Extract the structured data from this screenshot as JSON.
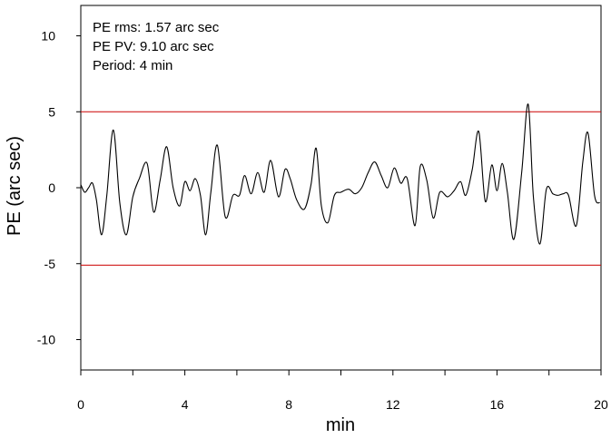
{
  "chart_data": {
    "type": "line",
    "title": "",
    "xlabel": "min",
    "ylabel": "PE (arc sec)",
    "xlim": [
      0,
      20
    ],
    "ylim": [
      -12,
      12
    ],
    "x_ticks": [
      {
        "value": 0,
        "label": "0"
      },
      {
        "value": 4,
        "label": "4"
      },
      {
        "value": 8,
        "label": "8"
      },
      {
        "value": 12,
        "label": "12"
      },
      {
        "value": 16,
        "label": "16"
      },
      {
        "value": 20,
        "label": "20"
      }
    ],
    "x_minor_ticks": [
      2,
      6,
      10,
      14,
      18
    ],
    "y_ticks": [
      {
        "value": 10,
        "label": "10"
      },
      {
        "value": 5,
        "label": "5"
      },
      {
        "value": 0,
        "label": "0"
      },
      {
        "value": -5,
        "label": "-5"
      },
      {
        "value": -10,
        "label": "-10"
      }
    ],
    "grid": false,
    "annotations": [
      "PE rms: 1.57 arc sec",
      "PE PV: 9.10 arc sec",
      "Period: 4 min"
    ],
    "reference_lines": [
      {
        "y": 5,
        "color": "#cc0000"
      },
      {
        "y": -5.1,
        "color": "#cc0000"
      }
    ],
    "series": [
      {
        "color": "#000000",
        "x": [
          0,
          0.15,
          0.3,
          0.45,
          0.6,
          0.8,
          1.0,
          1.25,
          1.5,
          1.75,
          2.0,
          2.25,
          2.55,
          2.8,
          3.05,
          3.3,
          3.55,
          3.8,
          4.0,
          4.2,
          4.4,
          4.6,
          4.8,
          5.0,
          5.25,
          5.55,
          5.85,
          6.1,
          6.3,
          6.55,
          6.8,
          7.05,
          7.3,
          7.6,
          7.85,
          8.05,
          8.3,
          8.6,
          8.85,
          9.05,
          9.25,
          9.5,
          9.75,
          10.0,
          10.3,
          10.55,
          10.8,
          11.05,
          11.3,
          11.55,
          11.8,
          12.05,
          12.3,
          12.55,
          12.85,
          13.05,
          13.3,
          13.55,
          13.8,
          14.1,
          14.35,
          14.6,
          14.8,
          15.05,
          15.3,
          15.55,
          15.8,
          16.0,
          16.2,
          16.4,
          16.65,
          16.95,
          17.2,
          17.4,
          17.65,
          17.9,
          18.15,
          18.35,
          18.55,
          18.75,
          19.05,
          19.3,
          19.5,
          19.75,
          19.95
        ],
        "values": [
          0.2,
          -0.3,
          0.0,
          0.3,
          -0.8,
          -3.1,
          -0.5,
          3.8,
          -1.0,
          -3.1,
          -0.6,
          0.6,
          1.6,
          -1.6,
          0.5,
          2.7,
          0.0,
          -1.2,
          0.4,
          -0.2,
          0.6,
          -0.5,
          -3.1,
          -0.3,
          2.8,
          -1.9,
          -0.5,
          -0.5,
          0.8,
          -0.4,
          1.0,
          -0.3,
          1.8,
          -0.6,
          1.2,
          0.6,
          -0.8,
          -1.4,
          0.2,
          2.6,
          -1.2,
          -2.3,
          -0.5,
          -0.3,
          -0.1,
          -0.4,
          0.0,
          1.0,
          1.7,
          0.8,
          0.0,
          1.3,
          0.3,
          0.6,
          -2.5,
          1.4,
          0.5,
          -2.0,
          -0.3,
          -0.6,
          -0.2,
          0.4,
          -0.5,
          1.2,
          3.7,
          -0.9,
          1.5,
          -0.2,
          1.6,
          -0.3,
          -3.4,
          1.0,
          5.5,
          -0.6,
          -3.7,
          -0.1,
          -0.4,
          -0.5,
          -0.4,
          -0.5,
          -2.5,
          1.7,
          3.6,
          -0.5,
          -1.0
        ]
      }
    ]
  }
}
